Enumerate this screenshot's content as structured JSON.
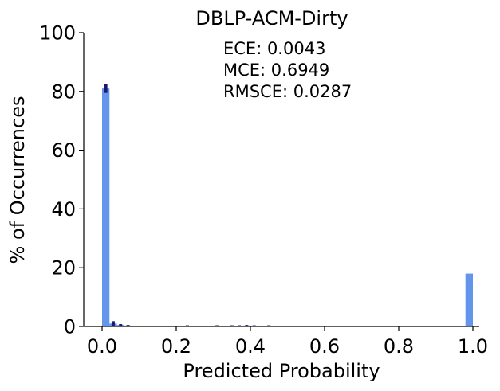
{
  "chart_data": {
    "type": "bar",
    "title": "DBLP-ACM-Dirty",
    "xlabel": "Predicted Probability",
    "ylabel": "% of Occurrences",
    "xlim": [
      -0.05,
      1.01
    ],
    "ylim": [
      0,
      100
    ],
    "xticks": [
      "0.0",
      "0.2",
      "0.4",
      "0.6",
      "0.8",
      "1.0"
    ],
    "yticks": [
      "0",
      "20",
      "40",
      "60",
      "80",
      "100"
    ],
    "bin_width": 0.02,
    "annotations": [
      "ECE: 0.0043",
      "MCE: 0.6949",
      "RMSCE: 0.0287"
    ],
    "bar_color": "#6495ed",
    "error_color": "#191970",
    "series": [
      {
        "bins": [
          0.01,
          0.03,
          0.05,
          0.07,
          0.23,
          0.31,
          0.35,
          0.37,
          0.39,
          0.41,
          0.45,
          0.99
        ],
        "values": [
          81.0,
          1.0,
          0.5,
          0.3,
          0.2,
          0.2,
          0.2,
          0.2,
          0.3,
          0.2,
          0.2,
          18.0
        ],
        "errors": [
          1.5,
          0.8,
          0.3,
          0.2,
          0.2,
          0.2,
          0.2,
          0.2,
          0.2,
          0.2,
          0.2,
          0.0
        ]
      }
    ]
  }
}
